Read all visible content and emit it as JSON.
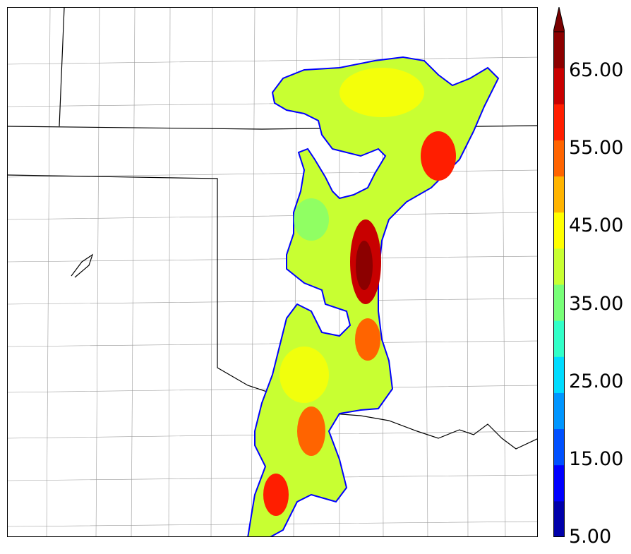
{
  "colorbar": {
    "colors": [
      "#0000aa",
      "#0000ff",
      "#0050ff",
      "#0096ff",
      "#00dcff",
      "#32ffc8",
      "#78ff78",
      "#c8ff32",
      "#ffff00",
      "#ffb400",
      "#ff6400",
      "#ff1e00",
      "#c80000",
      "#8c0000"
    ],
    "extend_color": "#7a0000",
    "levels": [
      5,
      10,
      15,
      20,
      25,
      30,
      35,
      40,
      45,
      50,
      55,
      60,
      65,
      70
    ],
    "labels": [
      "5.00",
      "15.00",
      "25.00",
      "35.00",
      "45.00",
      "55.00",
      "65.00"
    ]
  }
}
